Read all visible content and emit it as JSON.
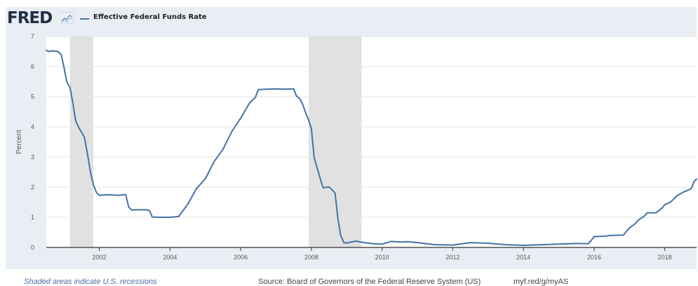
{
  "header": {
    "logo_text": "FRED",
    "logo_icon": "chart-line-icon"
  },
  "footer": {
    "recession_note": "Shaded areas indicate U.S. recessions",
    "source": "Source: Board of Governors of the Federal Reserve System (US)",
    "url": "myf.red/g/myAS"
  },
  "colors": {
    "series": "#4572a7",
    "recession": "#e1e1e1",
    "background": "#e9eef4",
    "plot_area": "#ffffff"
  },
  "chart_data": {
    "type": "line",
    "title": "",
    "xlabel": "",
    "ylabel": "Percent",
    "xlim": [
      2000.5,
      2018.9
    ],
    "ylim": [
      0,
      7
    ],
    "grid": true,
    "legend": "top-left",
    "x_ticks": [
      "2002",
      "2004",
      "2006",
      "2008",
      "2010",
      "2012",
      "2014",
      "2016",
      "2018"
    ],
    "y_ticks": [
      "0",
      "1",
      "2",
      "3",
      "4",
      "5",
      "6",
      "7"
    ],
    "recessions": [
      {
        "start": 2001.17,
        "end": 2001.83
      },
      {
        "start": 2007.92,
        "end": 2009.42
      }
    ],
    "series": [
      {
        "name": "Effective Federal Funds Rate",
        "x": [
          2000.5,
          2000.58,
          2000.67,
          2000.83,
          2000.92,
          2001.0,
          2001.08,
          2001.17,
          2001.25,
          2001.33,
          2001.42,
          2001.58,
          2001.67,
          2001.75,
          2001.83,
          2001.92,
          2002.0,
          2002.25,
          2002.5,
          2002.75,
          2002.83,
          2002.92,
          2003.0,
          2003.33,
          2003.42,
          2003.5,
          2003.75,
          2004.0,
          2004.25,
          2004.5,
          2004.75,
          2005.0,
          2005.25,
          2005.5,
          2005.75,
          2006.0,
          2006.25,
          2006.42,
          2006.5,
          2006.75,
          2007.0,
          2007.25,
          2007.5,
          2007.58,
          2007.67,
          2007.75,
          2007.83,
          2007.92,
          2008.0,
          2008.08,
          2008.17,
          2008.33,
          2008.5,
          2008.67,
          2008.75,
          2008.83,
          2008.92,
          2009.0,
          2009.25,
          2009.5,
          2009.75,
          2010.0,
          2010.25,
          2010.5,
          2010.75,
          2011.0,
          2011.5,
          2012.0,
          2012.5,
          2013.0,
          2013.5,
          2014.0,
          2014.5,
          2015.0,
          2015.5,
          2015.83,
          2015.92,
          2016.0,
          2016.25,
          2016.5,
          2016.83,
          2016.92,
          2017.0,
          2017.17,
          2017.25,
          2017.42,
          2017.5,
          2017.75,
          2017.92,
          2018.0,
          2018.17,
          2018.33,
          2018.5,
          2018.67,
          2018.75,
          2018.83,
          2018.9
        ],
        "y": [
          6.54,
          6.5,
          6.52,
          6.5,
          6.4,
          5.98,
          5.49,
          5.31,
          4.8,
          4.21,
          3.97,
          3.65,
          3.07,
          2.49,
          2.09,
          1.82,
          1.73,
          1.75,
          1.73,
          1.75,
          1.34,
          1.24,
          1.25,
          1.25,
          1.22,
          1.01,
          1.0,
          1.0,
          1.03,
          1.43,
          1.95,
          2.28,
          2.85,
          3.26,
          3.85,
          4.29,
          4.79,
          4.99,
          5.24,
          5.25,
          5.26,
          5.25,
          5.26,
          5.02,
          4.94,
          4.76,
          4.49,
          4.24,
          3.94,
          2.98,
          2.61,
          1.98,
          2.01,
          1.81,
          0.97,
          0.39,
          0.16,
          0.15,
          0.21,
          0.16,
          0.12,
          0.11,
          0.2,
          0.18,
          0.19,
          0.16,
          0.09,
          0.08,
          0.16,
          0.14,
          0.09,
          0.07,
          0.09,
          0.11,
          0.13,
          0.12,
          0.24,
          0.36,
          0.37,
          0.4,
          0.41,
          0.54,
          0.65,
          0.79,
          0.91,
          1.04,
          1.15,
          1.15,
          1.3,
          1.42,
          1.51,
          1.7,
          1.82,
          1.91,
          1.95,
          2.19,
          2.27
        ]
      }
    ]
  }
}
